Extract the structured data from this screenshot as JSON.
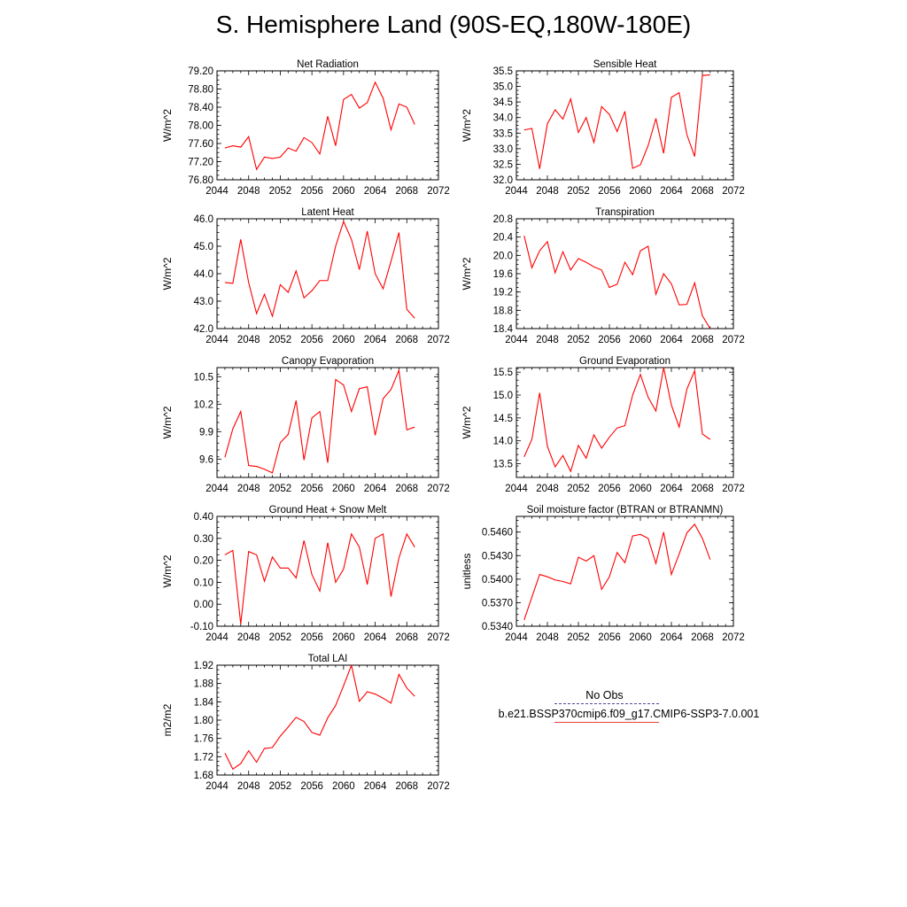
{
  "title": "S. Hemisphere Land (90S-EQ,180W-180E)",
  "legend": {
    "obs_label": "No Obs",
    "model_label": "b.e21.BSSP370cmip6.f09_g17.CMIP6-SSP3-7.0.001",
    "obs_color": "#4a4a9a",
    "model_color": "#ff0000"
  },
  "chart_data": [
    {
      "type": "line",
      "title": "Net Radiation",
      "ylabel": "W/m^2",
      "xlim": [
        2044,
        2072
      ],
      "ylim": [
        76.8,
        79.2
      ],
      "xticks": [
        "2044",
        "2048",
        "2052",
        "2056",
        "2060",
        "2064",
        "2068",
        "2072"
      ],
      "yticks": [
        "76.80",
        "77.20",
        "77.60",
        "78.00",
        "78.40",
        "78.80",
        "79.20"
      ],
      "x": [
        2045,
        2046,
        2047,
        2048,
        2049,
        2050,
        2051,
        2052,
        2053,
        2054,
        2055,
        2056,
        2057,
        2058,
        2059,
        2060,
        2061,
        2062,
        2063,
        2064,
        2065,
        2066,
        2067,
        2068,
        2069
      ],
      "series": [
        {
          "values": [
            77.5,
            77.55,
            77.52,
            77.75,
            77.03,
            77.3,
            77.27,
            77.3,
            77.5,
            77.43,
            77.73,
            77.62,
            77.37,
            78.2,
            77.55,
            78.57,
            78.68,
            78.38,
            78.5,
            78.95,
            78.6,
            77.9,
            78.47,
            78.4,
            78.02
          ]
        }
      ]
    },
    {
      "type": "line",
      "title": "Sensible Heat",
      "ylabel": "W/m^2",
      "xlim": [
        2044,
        2072
      ],
      "ylim": [
        32.0,
        35.5
      ],
      "xticks": [
        "2044",
        "2048",
        "2052",
        "2056",
        "2060",
        "2064",
        "2068",
        "2072"
      ],
      "yticks": [
        "32.0",
        "32.5",
        "33.0",
        "33.5",
        "34.0",
        "34.5",
        "35.0",
        "35.5"
      ],
      "x": [
        2045,
        2046,
        2047,
        2048,
        2049,
        2050,
        2051,
        2052,
        2053,
        2054,
        2055,
        2056,
        2057,
        2058,
        2059,
        2060,
        2061,
        2062,
        2063,
        2064,
        2065,
        2066,
        2067,
        2068,
        2069
      ],
      "series": [
        {
          "values": [
            33.6,
            33.65,
            32.35,
            33.8,
            34.25,
            33.95,
            34.6,
            33.52,
            34.0,
            33.2,
            34.35,
            34.1,
            33.55,
            34.2,
            32.37,
            32.48,
            33.1,
            33.97,
            32.85,
            34.65,
            34.8,
            33.45,
            32.75,
            35.35,
            35.37
          ]
        }
      ]
    },
    {
      "type": "line",
      "title": "Latent Heat",
      "ylabel": "W/m^2",
      "xlim": [
        2044,
        2072
      ],
      "ylim": [
        42.0,
        46.0
      ],
      "xticks": [
        "2044",
        "2048",
        "2052",
        "2056",
        "2060",
        "2064",
        "2068",
        "2072"
      ],
      "yticks": [
        "42.0",
        "43.0",
        "44.0",
        "45.0",
        "46.0"
      ],
      "x": [
        2045,
        2046,
        2047,
        2048,
        2049,
        2050,
        2051,
        2052,
        2053,
        2054,
        2055,
        2056,
        2057,
        2058,
        2059,
        2060,
        2061,
        2062,
        2063,
        2064,
        2065,
        2066,
        2067,
        2068,
        2069
      ],
      "series": [
        {
          "values": [
            43.68,
            43.65,
            45.25,
            43.68,
            42.55,
            43.25,
            42.45,
            43.6,
            43.32,
            44.1,
            43.12,
            43.38,
            43.75,
            43.75,
            45.0,
            45.9,
            45.25,
            44.15,
            45.55,
            44.0,
            43.45,
            44.45,
            45.5,
            42.7,
            42.38
          ]
        }
      ]
    },
    {
      "type": "line",
      "title": "Transpiration",
      "ylabel": "W/m^2",
      "xlim": [
        2044,
        2072
      ],
      "ylim": [
        18.4,
        20.8
      ],
      "xticks": [
        "2044",
        "2048",
        "2052",
        "2056",
        "2060",
        "2064",
        "2068",
        "2072"
      ],
      "yticks": [
        "18.4",
        "18.8",
        "19.2",
        "19.6",
        "20.0",
        "20.4",
        "20.8"
      ],
      "x": [
        2045,
        2046,
        2047,
        2048,
        2049,
        2050,
        2051,
        2052,
        2053,
        2054,
        2055,
        2056,
        2057,
        2058,
        2059,
        2060,
        2061,
        2062,
        2063,
        2064,
        2065,
        2066,
        2067,
        2068,
        2069
      ],
      "series": [
        {
          "values": [
            20.43,
            19.73,
            20.1,
            20.3,
            19.62,
            20.08,
            19.68,
            19.93,
            19.85,
            19.75,
            19.68,
            19.3,
            19.37,
            19.85,
            19.58,
            20.1,
            20.2,
            19.15,
            19.6,
            19.38,
            18.92,
            18.93,
            19.4,
            18.68,
            18.4
          ]
        }
      ]
    },
    {
      "type": "line",
      "title": "Canopy Evaporation",
      "ylabel": "W/m^2",
      "xlim": [
        2044,
        2072
      ],
      "ylim": [
        9.4,
        10.6
      ],
      "xticks": [
        "2044",
        "2048",
        "2052",
        "2056",
        "2060",
        "2064",
        "2068",
        "2072"
      ],
      "yticks": [
        "9.6",
        "9.9",
        "10.2",
        "10.5"
      ],
      "x": [
        2045,
        2046,
        2047,
        2048,
        2049,
        2050,
        2051,
        2052,
        2053,
        2054,
        2055,
        2056,
        2057,
        2058,
        2059,
        2060,
        2061,
        2062,
        2063,
        2064,
        2065,
        2066,
        2067,
        2068,
        2069
      ],
      "series": [
        {
          "values": [
            9.62,
            9.93,
            10.12,
            9.53,
            9.52,
            9.49,
            9.45,
            9.78,
            9.87,
            10.24,
            9.59,
            10.05,
            10.12,
            9.56,
            10.47,
            10.41,
            10.12,
            10.37,
            10.39,
            9.86,
            10.26,
            10.36,
            10.57,
            9.92,
            9.95
          ]
        }
      ]
    },
    {
      "type": "line",
      "title": "Ground Evaporation",
      "ylabel": "W/m^2",
      "xlim": [
        2044,
        2072
      ],
      "ylim": [
        13.2,
        15.6
      ],
      "xticks": [
        "2044",
        "2048",
        "2052",
        "2056",
        "2060",
        "2064",
        "2068",
        "2072"
      ],
      "yticks": [
        "13.5",
        "14.0",
        "14.5",
        "15.0",
        "15.5"
      ],
      "x": [
        2045,
        2046,
        2047,
        2048,
        2049,
        2050,
        2051,
        2052,
        2053,
        2054,
        2055,
        2056,
        2057,
        2058,
        2059,
        2060,
        2061,
        2062,
        2063,
        2064,
        2065,
        2066,
        2067,
        2068,
        2069
      ],
      "series": [
        {
          "values": [
            13.65,
            14.03,
            15.05,
            13.88,
            13.43,
            13.68,
            13.33,
            13.9,
            13.62,
            14.13,
            13.84,
            14.08,
            14.28,
            14.33,
            15.0,
            15.45,
            14.95,
            14.65,
            15.6,
            14.78,
            14.3,
            15.13,
            15.53,
            14.15,
            14.03
          ]
        }
      ]
    },
    {
      "type": "line",
      "title": "Ground Heat + Snow Melt",
      "ylabel": "W/m^2",
      "xlim": [
        2044,
        2072
      ],
      "ylim": [
        -0.1,
        0.4
      ],
      "xticks": [
        "2044",
        "2048",
        "2052",
        "2056",
        "2060",
        "2064",
        "2068",
        "2072"
      ],
      "yticks": [
        "-0.10",
        "0.00",
        "0.10",
        "0.20",
        "0.30",
        "0.40"
      ],
      "x": [
        2045,
        2046,
        2047,
        2048,
        2049,
        2050,
        2051,
        2052,
        2053,
        2054,
        2055,
        2056,
        2057,
        2058,
        2059,
        2060,
        2061,
        2062,
        2063,
        2064,
        2065,
        2066,
        2067,
        2068,
        2069
      ],
      "series": [
        {
          "values": [
            0.225,
            0.245,
            -0.09,
            0.24,
            0.225,
            0.105,
            0.215,
            0.165,
            0.165,
            0.12,
            0.29,
            0.135,
            0.06,
            0.28,
            0.1,
            0.16,
            0.32,
            0.26,
            0.09,
            0.3,
            0.32,
            0.035,
            0.21,
            0.32,
            0.26
          ]
        }
      ]
    },
    {
      "type": "line",
      "title": "Soil moisture factor (BTRAN or BTRANMN)",
      "ylabel": "unitless",
      "xlim": [
        2044,
        2072
      ],
      "ylim": [
        0.534,
        0.548
      ],
      "xticks": [
        "2044",
        "2048",
        "2052",
        "2056",
        "2060",
        "2064",
        "2068",
        "2072"
      ],
      "yticks": [
        "0.5340",
        "0.5370",
        "0.5400",
        "0.5430",
        "0.5460"
      ],
      "x": [
        2045,
        2046,
        2047,
        2048,
        2049,
        2050,
        2051,
        2052,
        2053,
        2054,
        2055,
        2056,
        2057,
        2058,
        2059,
        2060,
        2061,
        2062,
        2063,
        2064,
        2065,
        2066,
        2067,
        2068,
        2069
      ],
      "series": [
        {
          "values": [
            0.5348,
            0.5377,
            0.5406,
            0.5403,
            0.5399,
            0.5397,
            0.5394,
            0.5428,
            0.5423,
            0.543,
            0.5387,
            0.5403,
            0.5434,
            0.5421,
            0.5455,
            0.5457,
            0.5452,
            0.542,
            0.546,
            0.5406,
            0.5432,
            0.5459,
            0.547,
            0.5452,
            0.5425
          ]
        }
      ]
    },
    {
      "type": "line",
      "title": "Total LAI",
      "ylabel": "m2/m2",
      "xlim": [
        2044,
        2072
      ],
      "ylim": [
        1.68,
        1.92
      ],
      "xticks": [
        "2044",
        "2048",
        "2052",
        "2056",
        "2060",
        "2064",
        "2068",
        "2072"
      ],
      "yticks": [
        "1.68",
        "1.72",
        "1.76",
        "1.80",
        "1.84",
        "1.88",
        "1.92"
      ],
      "x": [
        2045,
        2046,
        2047,
        2048,
        2049,
        2050,
        2051,
        2052,
        2053,
        2054,
        2055,
        2056,
        2057,
        2058,
        2059,
        2060,
        2061,
        2062,
        2063,
        2064,
        2065,
        2066,
        2067,
        2068,
        2069
      ],
      "series": [
        {
          "values": [
            1.728,
            1.693,
            1.705,
            1.733,
            1.708,
            1.738,
            1.74,
            1.765,
            1.785,
            1.806,
            1.797,
            1.773,
            1.767,
            1.805,
            1.832,
            1.875,
            1.92,
            1.841,
            1.862,
            1.857,
            1.848,
            1.837,
            1.9,
            1.87,
            1.852
          ]
        }
      ]
    }
  ]
}
